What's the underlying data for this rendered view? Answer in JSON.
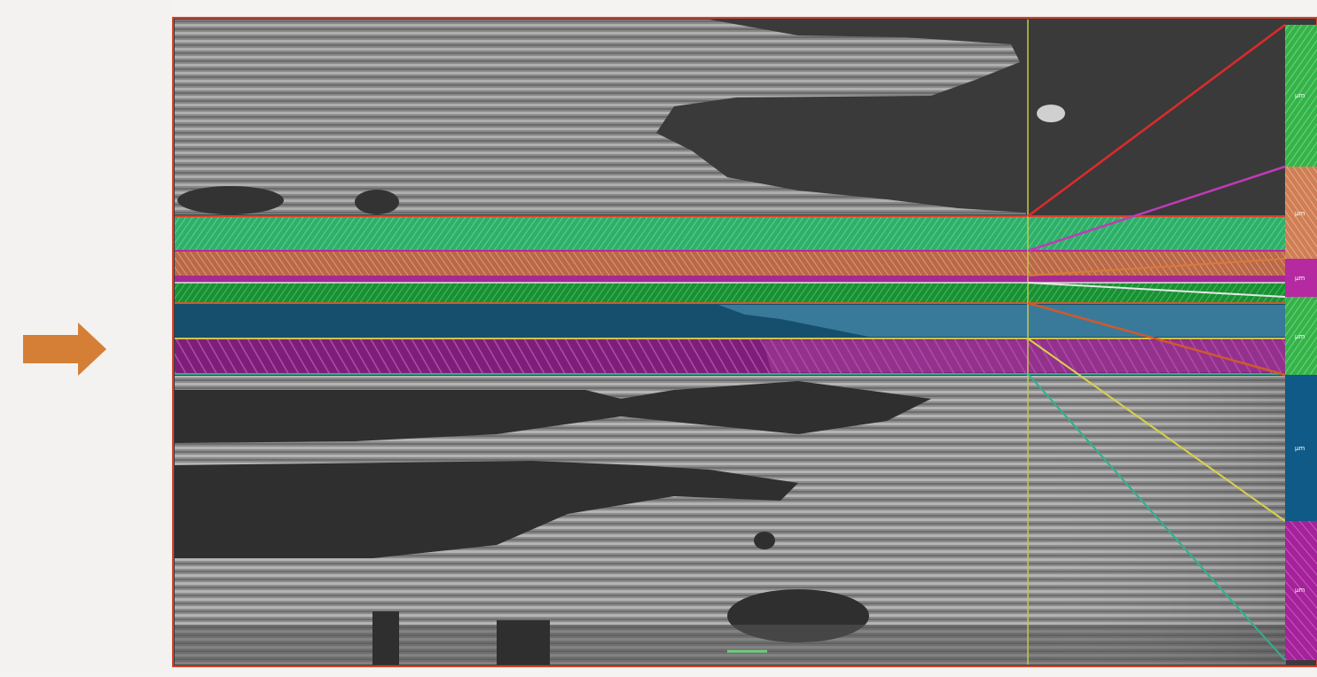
{
  "figure": {
    "arrow": {
      "color": "#d57f36",
      "direction": "right"
    },
    "panel": {
      "border_color": "#d9412b",
      "background": "#3b3b3b",
      "cursor_line_color": "#c8c84a"
    },
    "layer_bands": [
      {
        "name": "green-band-top",
        "color": "#2fb06a"
      },
      {
        "name": "orange-band",
        "color": "#c8744a"
      },
      {
        "name": "magenta-thin-band",
        "color": "#b52aa0"
      },
      {
        "name": "green-band-mid",
        "color": "#1fa23f"
      },
      {
        "name": "blue-band",
        "color": "#1a5f86"
      },
      {
        "name": "purple-band",
        "color": "#8c2386"
      }
    ],
    "thickness_bar": {
      "segments": [
        {
          "name": "green-top",
          "color": "#35b34a",
          "label": "μm"
        },
        {
          "name": "orange",
          "color": "#cf7e55",
          "label": "μm"
        },
        {
          "name": "magenta",
          "color": "#b52aa0",
          "label": "μm"
        },
        {
          "name": "green-mid",
          "color": "#2ea53a",
          "label": "μm"
        },
        {
          "name": "blue",
          "color": "#0f5a86",
          "label": "μm"
        },
        {
          "name": "purple",
          "color": "#a4229a",
          "label": "μm"
        }
      ]
    },
    "scale_bar": {
      "color": "#6ad07a"
    }
  }
}
